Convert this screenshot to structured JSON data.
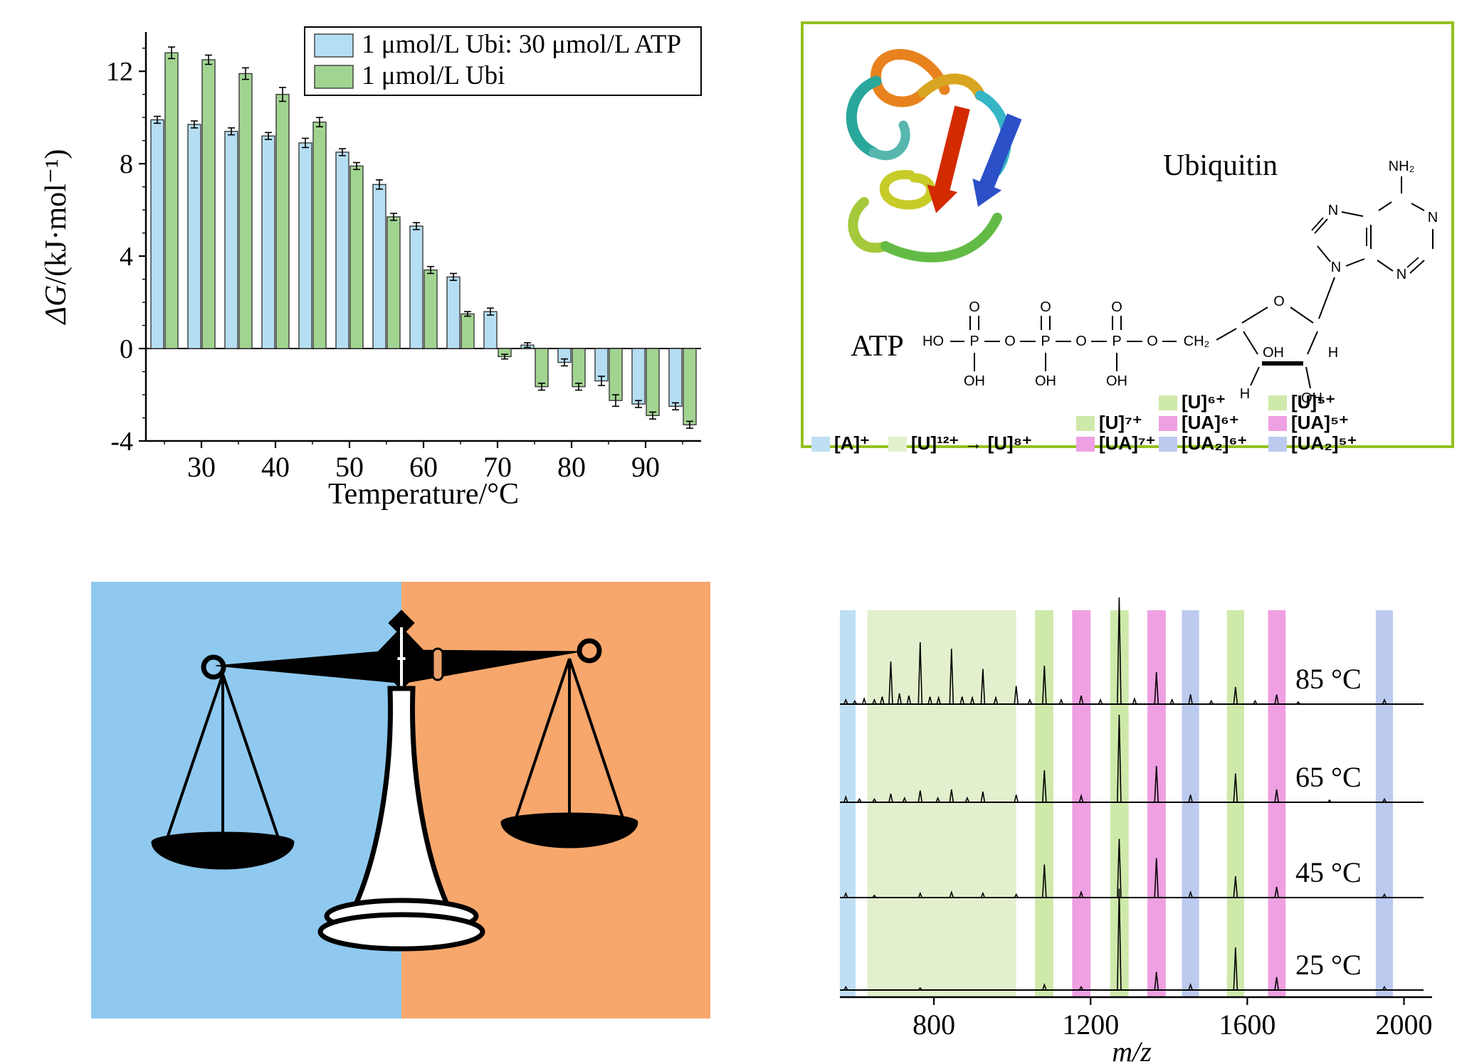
{
  "chart_data": [
    {
      "id": "free-energy-bar-chart",
      "type": "bar",
      "title": "",
      "xlabel": "Temperature/°C",
      "ylabel": {
        "italic_part": "ΔG",
        "roman_part": "/(kJ·mol⁻¹)"
      },
      "categories": [
        25,
        30,
        35,
        40,
        45,
        50,
        55,
        60,
        65,
        70,
        75,
        80,
        85,
        90,
        95
      ],
      "series": [
        {
          "name": "1 μmol/L Ubi: 30 μmol/L ATP",
          "color": "#b5def2",
          "values": [
            9.9,
            9.7,
            9.4,
            9.2,
            8.9,
            8.5,
            7.1,
            5.3,
            3.1,
            1.6,
            0.15,
            -0.6,
            -1.4,
            -2.4,
            -2.5
          ],
          "errors": [
            0.15,
            0.15,
            0.15,
            0.15,
            0.2,
            0.15,
            0.2,
            0.15,
            0.15,
            0.15,
            0.1,
            0.15,
            0.2,
            0.15,
            0.15
          ]
        },
        {
          "name": "1 μmol/L Ubi",
          "color": "#a2d491",
          "values": [
            12.8,
            12.5,
            11.9,
            11.0,
            9.8,
            7.9,
            5.7,
            3.4,
            1.5,
            -0.35,
            -1.65,
            -1.65,
            -2.25,
            -2.9,
            -3.3
          ],
          "errors": [
            0.25,
            0.2,
            0.25,
            0.3,
            0.2,
            0.15,
            0.15,
            0.15,
            0.1,
            0.1,
            0.15,
            0.15,
            0.25,
            0.15,
            0.15
          ]
        }
      ],
      "ylim": [
        -4,
        13.7
      ],
      "yticks": [
        -4,
        0,
        4,
        8,
        12
      ],
      "xticks": [
        30,
        40,
        50,
        60,
        70,
        80,
        90
      ],
      "legend_position": "top-right-inside",
      "grid": false
    },
    {
      "id": "mass-spectra",
      "type": "line",
      "xlabel": "m/z",
      "xlim": [
        560,
        2050
      ],
      "xticks": [
        800,
        1200,
        1600,
        2000
      ],
      "bands": [
        {
          "label": "[A]⁺",
          "color": "#bfe0f4",
          "range": [
            560,
            600
          ]
        },
        {
          "label": "[U]¹²⁺ → [U]⁸⁺",
          "color": "#e3f0cd",
          "range": [
            630,
            1010
          ]
        },
        {
          "label": "[U]⁷⁺",
          "color": "#cfe9ab",
          "range": [
            1058,
            1105
          ]
        },
        {
          "label": "[UA]⁷⁺",
          "color": "#efa0e2",
          "range": [
            1153,
            1200
          ]
        },
        {
          "label": "[U]⁶⁺",
          "color": "#cfe9ab",
          "range": [
            1250,
            1297
          ]
        },
        {
          "label": "[UA]⁶⁺",
          "color": "#efa0e2",
          "range": [
            1345,
            1392
          ]
        },
        {
          "label": "[UA₂]⁶⁺",
          "color": "#bccaf0",
          "range": [
            1433,
            1477
          ]
        },
        {
          "label": "[U]⁵⁺",
          "color": "#cfe9ab",
          "range": [
            1548,
            1592
          ]
        },
        {
          "label": "[UA]⁵⁺",
          "color": "#efa0e2",
          "range": [
            1653,
            1698
          ]
        },
        {
          "label": "[UA₂]⁵⁺",
          "color": "#bccaf0",
          "range": [
            1928,
            1972
          ]
        }
      ],
      "legend_columns": [
        {
          "items": [
            {
              "label": "[A]⁺",
              "color": "#bfe0f4",
              "row": 2
            }
          ]
        },
        {
          "items": [
            {
              "label": "[U]¹²⁺ → [U]⁸⁺",
              "color": "#e3f0cd",
              "row": 2
            }
          ]
        },
        {
          "items": [
            {
              "label": "[U]⁷⁺",
              "color": "#cfe9ab",
              "row": 1
            },
            {
              "label": "[UA]⁷⁺",
              "color": "#efa0e2",
              "row": 2
            }
          ]
        },
        {
          "items": [
            {
              "label": "[U]⁶⁺",
              "color": "#cfe9ab",
              "row": 0
            },
            {
              "label": "[UA]⁶⁺",
              "color": "#efa0e2",
              "row": 1
            },
            {
              "label": "[UA₂]⁶⁺",
              "color": "#bccaf0",
              "row": 2
            }
          ]
        },
        {
          "items": [
            {
              "label": "[U]⁵⁺",
              "color": "#cfe9ab",
              "row": 0
            },
            {
              "label": "[UA]⁵⁺",
              "color": "#efa0e2",
              "row": 1
            },
            {
              "label": "[UA₂]⁵⁺",
              "color": "#bccaf0",
              "row": 2
            }
          ]
        }
      ],
      "spectra": [
        {
          "temperature": "85 °C",
          "peaks": [
            [
              575,
              0.04
            ],
            [
              598,
              0.03
            ],
            [
              622,
              0.05
            ],
            [
              648,
              0.04
            ],
            [
              668,
              0.07
            ],
            [
              690,
              0.4
            ],
            [
              712,
              0.1
            ],
            [
              736,
              0.08
            ],
            [
              765,
              0.58
            ],
            [
              790,
              0.07
            ],
            [
              812,
              0.06
            ],
            [
              845,
              0.52
            ],
            [
              872,
              0.07
            ],
            [
              898,
              0.06
            ],
            [
              925,
              0.33
            ],
            [
              958,
              0.06
            ],
            [
              1010,
              0.17
            ],
            [
              1045,
              0.04
            ],
            [
              1082,
              0.36
            ],
            [
              1125,
              0.04
            ],
            [
              1176,
              0.08
            ],
            [
              1225,
              0.04
            ],
            [
              1273,
              1.0
            ],
            [
              1312,
              0.05
            ],
            [
              1368,
              0.3
            ],
            [
              1408,
              0.04
            ],
            [
              1455,
              0.09
            ],
            [
              1508,
              0.03
            ],
            [
              1570,
              0.16
            ],
            [
              1620,
              0.03
            ],
            [
              1675,
              0.09
            ],
            [
              1730,
              0.02
            ],
            [
              1950,
              0.04
            ]
          ]
        },
        {
          "temperature": "65 °C",
          "peaks": [
            [
              575,
              0.05
            ],
            [
              610,
              0.03
            ],
            [
              648,
              0.03
            ],
            [
              690,
              0.08
            ],
            [
              725,
              0.04
            ],
            [
              765,
              0.11
            ],
            [
              810,
              0.04
            ],
            [
              845,
              0.12
            ],
            [
              885,
              0.04
            ],
            [
              925,
              0.1
            ],
            [
              1010,
              0.07
            ],
            [
              1082,
              0.3
            ],
            [
              1176,
              0.06
            ],
            [
              1273,
              0.82
            ],
            [
              1368,
              0.34
            ],
            [
              1455,
              0.07
            ],
            [
              1570,
              0.27
            ],
            [
              1675,
              0.12
            ],
            [
              1810,
              0.02
            ],
            [
              1950,
              0.03
            ]
          ]
        },
        {
          "temperature": "45 °C",
          "peaks": [
            [
              575,
              0.04
            ],
            [
              648,
              0.02
            ],
            [
              765,
              0.04
            ],
            [
              845,
              0.05
            ],
            [
              925,
              0.04
            ],
            [
              1010,
              0.03
            ],
            [
              1082,
              0.31
            ],
            [
              1176,
              0.05
            ],
            [
              1273,
              0.55
            ],
            [
              1368,
              0.37
            ],
            [
              1455,
              0.05
            ],
            [
              1570,
              0.2
            ],
            [
              1675,
              0.1
            ],
            [
              1950,
              0.03
            ]
          ]
        },
        {
          "temperature": "25 °C",
          "peaks": [
            [
              575,
              0.03
            ],
            [
              765,
              0.02
            ],
            [
              1082,
              0.05
            ],
            [
              1176,
              0.03
            ],
            [
              1273,
              0.95
            ],
            [
              1368,
              0.17
            ],
            [
              1455,
              0.05
            ],
            [
              1570,
              0.4
            ],
            [
              1675,
              0.12
            ],
            [
              1950,
              0.03
            ]
          ]
        }
      ],
      "grid": false
    }
  ],
  "molecules": {
    "ubiquitin_label": "Ubiquitin",
    "atp_label": "ATP",
    "border_color": "#94c11f",
    "atoms": {
      "ho": "HO",
      "p": "P",
      "o": "O",
      "oh": "OH",
      "ch2": "CH₂",
      "h": "H",
      "n": "N",
      "nh2": "NH₂"
    }
  },
  "balance": {
    "left_color": "#8fc9ef",
    "right_color": "#f7a76c"
  }
}
